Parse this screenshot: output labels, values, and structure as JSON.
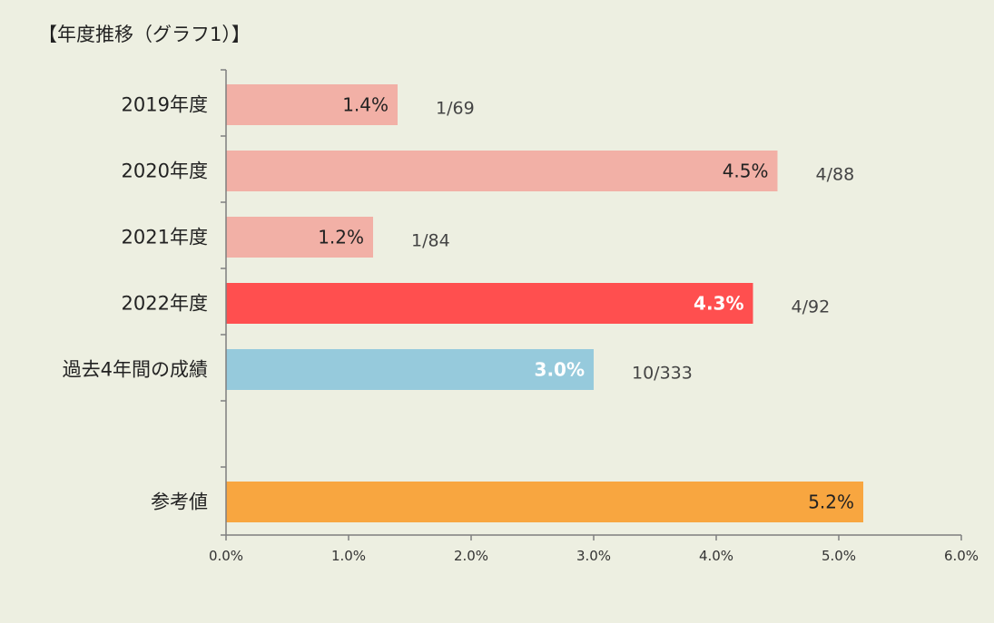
{
  "chart_data": {
    "type": "bar",
    "orientation": "horizontal",
    "title": "【年度推移（グラフ1）】",
    "xlim": [
      0,
      6
    ],
    "xticks": [
      "0.0%",
      "1.0%",
      "2.0%",
      "3.0%",
      "4.0%",
      "5.0%",
      "6.0%"
    ],
    "grid": false,
    "bars": [
      {
        "category": "2019年度",
        "value": 1.4,
        "value_label": "1.4%",
        "ratio": "1/69",
        "color": "#f2b0a6",
        "label_color": "#222222"
      },
      {
        "category": "2020年度",
        "value": 4.5,
        "value_label": "4.5%",
        "ratio": "4/88",
        "color": "#f2b0a6",
        "label_color": "#222222"
      },
      {
        "category": "2021年度",
        "value": 1.2,
        "value_label": "1.2%",
        "ratio": "1/84",
        "color": "#f2b0a6",
        "label_color": "#222222"
      },
      {
        "category": "2022年度",
        "value": 4.3,
        "value_label": "4.3%",
        "ratio": "4/92",
        "color": "#ff4f4f",
        "label_color": "#ffffff"
      },
      {
        "category": "過去4年間の成績",
        "value": 3.0,
        "value_label": "3.0%",
        "ratio": "10/333",
        "color": "#96cadc",
        "label_color": "#ffffff"
      },
      {
        "category": "参考値",
        "value": 5.2,
        "value_label": "5.2%",
        "ratio": "",
        "color": "#f8a640",
        "label_color": "#222222"
      }
    ]
  }
}
